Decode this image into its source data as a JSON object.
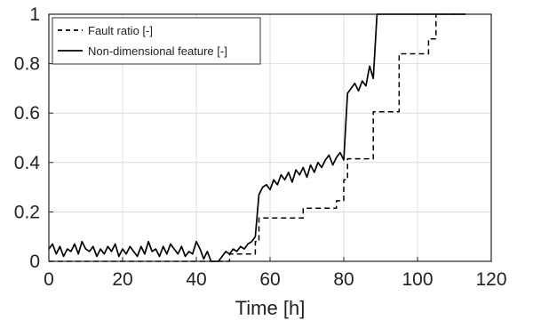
{
  "chart_data": {
    "type": "line",
    "xlabel": "Time [h]",
    "ylabel": "",
    "xlim": [
      0,
      120
    ],
    "ylim": [
      0,
      1
    ],
    "xticks": [
      "0",
      "20",
      "40",
      "60",
      "80",
      "100",
      "120"
    ],
    "yticks": [
      "0",
      "0.2",
      "0.4",
      "0.6",
      "0.8",
      "1"
    ],
    "grid": true,
    "legend_position": "top-left",
    "series": [
      {
        "name": "Fault ratio [-]",
        "style": "dashed",
        "color": "#000000",
        "x": [
          0,
          49,
          49,
          56,
          56,
          57,
          57,
          69,
          69,
          78,
          78,
          80,
          80,
          81,
          81,
          88,
          88,
          95,
          95,
          103,
          103,
          105,
          105,
          113
        ],
        "y": [
          0,
          0,
          0.03,
          0.03,
          0.08,
          0.08,
          0.175,
          0.175,
          0.215,
          0.215,
          0.245,
          0.245,
          0.33,
          0.33,
          0.415,
          0.415,
          0.605,
          0.605,
          0.84,
          0.84,
          0.9,
          0.9,
          1.0,
          1.0
        ]
      },
      {
        "name": "Non-dimensional feature [-]",
        "style": "solid",
        "color": "#000000",
        "x": [
          0,
          1,
          2,
          3,
          4,
          5,
          6,
          7,
          8,
          9,
          10,
          11,
          12,
          13,
          14,
          15,
          16,
          17,
          18,
          19,
          20,
          21,
          22,
          23,
          24,
          25,
          26,
          27,
          28,
          29,
          30,
          31,
          32,
          33,
          34,
          35,
          36,
          37,
          38,
          39,
          40,
          41,
          42,
          43,
          44,
          45,
          46,
          47,
          48,
          49,
          50,
          51,
          52,
          53,
          54,
          55,
          56,
          57,
          58,
          59,
          60,
          61,
          62,
          63,
          64,
          65,
          66,
          67,
          68,
          69,
          70,
          71,
          72,
          73,
          74,
          75,
          76,
          77,
          78,
          79,
          80,
          81,
          82,
          83,
          84,
          85,
          86,
          87,
          88,
          89,
          90,
          95,
          100,
          105,
          110,
          113
        ],
        "y": [
          0.05,
          0.07,
          0.03,
          0.06,
          0.02,
          0.05,
          0.04,
          0.07,
          0.03,
          0.08,
          0.05,
          0.04,
          0.06,
          0.02,
          0.05,
          0.03,
          0.06,
          0.04,
          0.07,
          0.02,
          0.05,
          0.03,
          0.06,
          0.04,
          0.02,
          0.06,
          0.03,
          0.08,
          0.04,
          0.05,
          0.02,
          0.06,
          0.03,
          0.07,
          0.05,
          0.03,
          0.06,
          0.02,
          0.04,
          0.03,
          0.08,
          0.05,
          0.01,
          0.04,
          0.0,
          0.0,
          0.0,
          0.02,
          0.04,
          0.03,
          0.05,
          0.04,
          0.06,
          0.05,
          0.07,
          0.08,
          0.1,
          0.27,
          0.3,
          0.31,
          0.29,
          0.33,
          0.31,
          0.35,
          0.33,
          0.36,
          0.32,
          0.37,
          0.35,
          0.38,
          0.34,
          0.39,
          0.36,
          0.4,
          0.38,
          0.41,
          0.43,
          0.39,
          0.42,
          0.44,
          0.41,
          0.68,
          0.7,
          0.72,
          0.69,
          0.73,
          0.71,
          0.79,
          0.74,
          1.0,
          1.0,
          1.0,
          1.0,
          1.0,
          1.0,
          1.0
        ]
      }
    ]
  }
}
